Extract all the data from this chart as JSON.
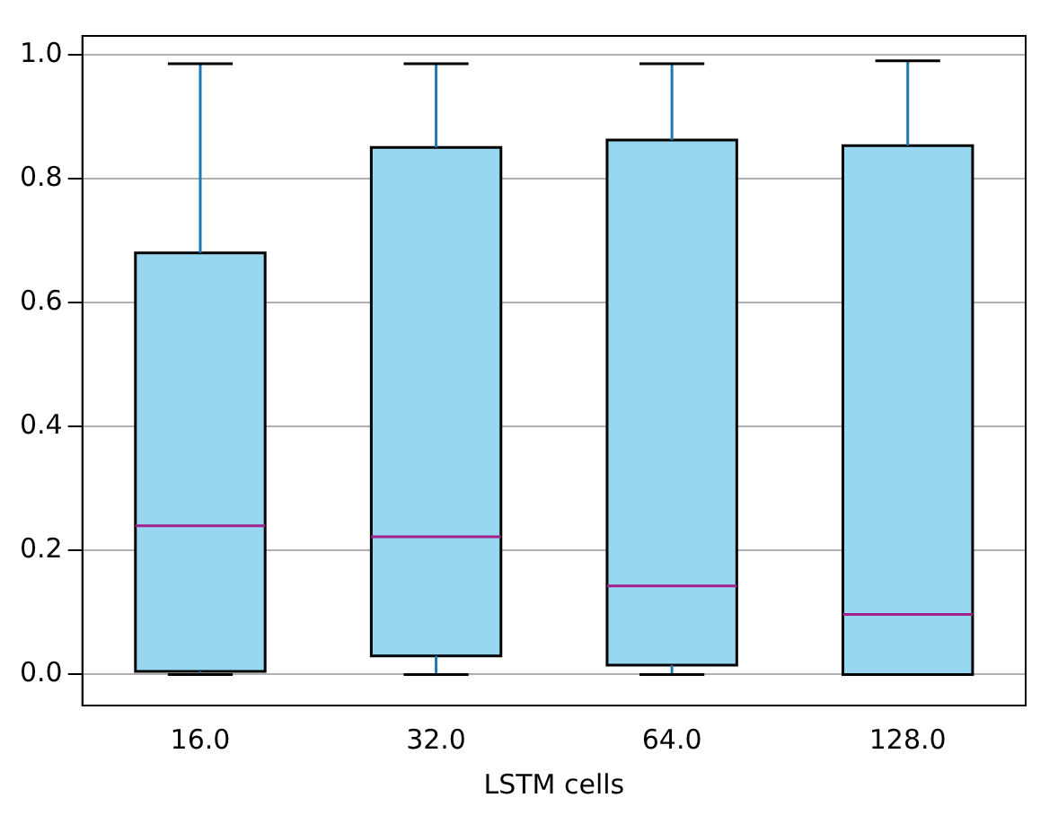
{
  "chart_data": {
    "type": "box",
    "xlabel": "LSTM cells",
    "categories": [
      "16.0",
      "32.0",
      "64.0",
      "128.0"
    ],
    "series": [
      {
        "color": "#97d7f0",
        "boxes": [
          {
            "low": 0.0,
            "q1": 0.005,
            "median": 0.24,
            "q3": 0.68,
            "high": 0.985
          },
          {
            "low": 0.0,
            "q1": 0.03,
            "median": 0.222,
            "q3": 0.85,
            "high": 0.985
          },
          {
            "low": 0.0,
            "q1": 0.015,
            "median": 0.143,
            "q3": 0.862,
            "high": 0.985
          },
          {
            "low": 0.0,
            "q1": 0.0,
            "median": 0.097,
            "q3": 0.853,
            "high": 0.99
          }
        ]
      }
    ],
    "ylim": [
      -0.05,
      1.03
    ],
    "yticks": [
      {
        "value": 0,
        "label": "0.0"
      },
      {
        "value": 0.2,
        "label": "0.2"
      },
      {
        "value": 0.4,
        "label": "0.4"
      },
      {
        "value": 0.6,
        "label": "0.6"
      },
      {
        "value": 0.8,
        "label": "0.8"
      },
      {
        "value": 1.0,
        "label": "1.0"
      }
    ],
    "grid": "y",
    "legend": false
  }
}
